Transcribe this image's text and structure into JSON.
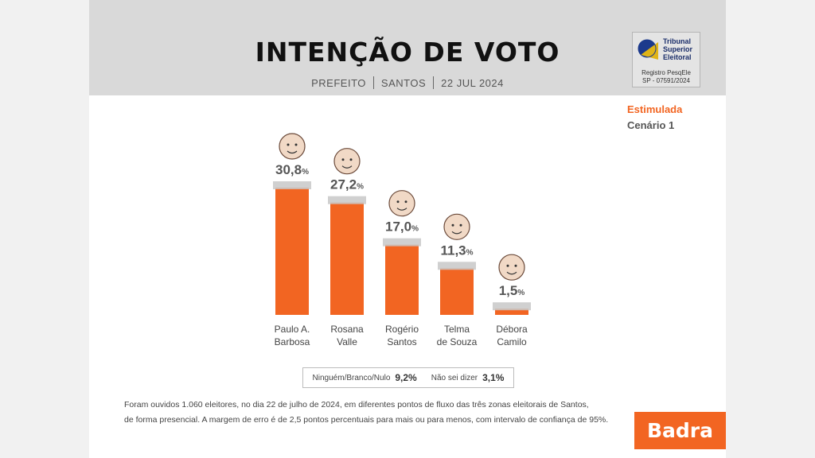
{
  "header": {
    "title": "INTENÇÃO DE VOTO",
    "office": "PREFEITO",
    "city": "SANTOS",
    "date": "22 JUL 2024"
  },
  "tse_badge": {
    "name_line1": "Tribunal",
    "name_line2": "Superior",
    "name_line3": "Eleitoral",
    "registry_line1": "Registro PesqEle",
    "registry_line2": "SP - 07591/2024"
  },
  "survey": {
    "type": "Estimulada",
    "scenario": "Cenário 1"
  },
  "chart_data": {
    "type": "bar",
    "categories": [
      [
        "Paulo A.",
        "Barbosa"
      ],
      [
        "Rosana",
        "Valle"
      ],
      [
        "Rogério",
        "Santos"
      ],
      [
        "Telma",
        "de Souza"
      ],
      [
        "Débora",
        "Camilo"
      ]
    ],
    "values": [
      30.8,
      27.2,
      17.0,
      11.3,
      1.5
    ],
    "value_labels": [
      "30,8",
      "27,2",
      "17,0",
      "11,3",
      "1,5"
    ],
    "unit": "%",
    "ylim": [
      0,
      30.8
    ],
    "grid": false,
    "bar_color": "#f26522"
  },
  "others": {
    "none_label": "Ninguém/Branco/Nulo",
    "none_value": "9,2%",
    "dont_know_label": "Não sei dizer",
    "dont_know_value": "3,1%"
  },
  "footnote": {
    "line1": "Foram ouvidos 1.060 eleitores, no dia 22 de julho de 2024, em diferentes pontos de fluxo das três zonas eleitorais de Santos,",
    "line2": "de forma presencial. A margem de erro é de 2,5 pontos percentuais para mais ou para menos, com intervalo de confiança de 95%."
  },
  "brand": {
    "name": "Badra",
    "color": "#f26522"
  }
}
